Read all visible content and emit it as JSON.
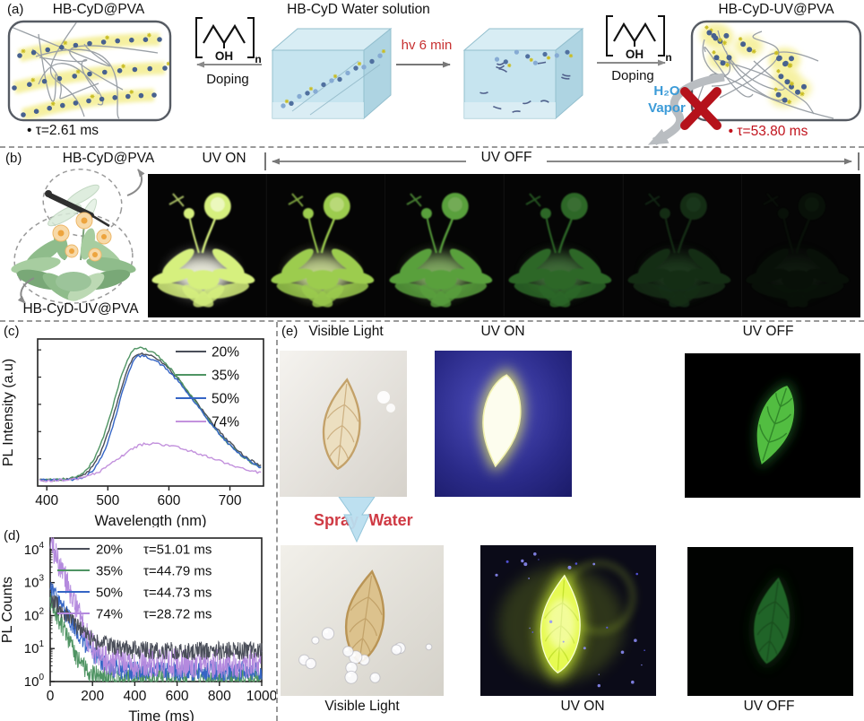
{
  "panel_labels": {
    "a": "(a)",
    "b": "(b)",
    "c": "(c)",
    "d": "(d)",
    "e": "(e)"
  },
  "panel_a": {
    "left_title": "HB-CyD@PVA",
    "bullet": "•",
    "left_tau": "τ=2.61  ms",
    "doping_left": "Doping",
    "solution_title": "HB-CyD Water solution",
    "hv_label": "hv 6 min",
    "doping_right": "Doping",
    "right_title": "HB-CyD-UV@PVA",
    "vapor_line1": "H₂O",
    "vapor_line2": "Vapor",
    "right_tau": "τ=53.80 ms",
    "pva_oh": "OH",
    "pva_n": "n"
  },
  "panel_b": {
    "top_label": "HB-CyD@PVA",
    "bottom_label": "HB-CyD-UV@PVA",
    "uv_on": "UV ON",
    "uv_off": "UV OFF",
    "frames": [
      {
        "leaf": "#d6f07e",
        "core": "#fffff0",
        "glow": 1.0
      },
      {
        "leaf": "#a9dd55",
        "core": "#e4f7a8",
        "glow": 0.92
      },
      {
        "leaf": "#6cc24a",
        "core": "#a8dd80",
        "glow": 0.82
      },
      {
        "leaf": "#3f9638",
        "core": "#63aa58",
        "glow": 0.68
      },
      {
        "leaf": "#234f24",
        "core": "#356b34",
        "glow": 0.55
      },
      {
        "leaf": "#11240f",
        "core": "#1b3a1a",
        "glow": 0.4
      }
    ]
  },
  "panel_e": {
    "top_titles": [
      "Visible Light",
      "UV ON",
      "UV OFF"
    ],
    "bottom_titles": [
      "Visible Light",
      "UV ON",
      "UV OFF"
    ],
    "spray_word1": "Spray",
    "spray_word2": "Water"
  },
  "colors": {
    "accent_red": "#c1121c",
    "hv_red": "#c73030",
    "spray_red": "#cf3a44",
    "vapor_blue": "#3b9bd8",
    "water_box": "#c6e4ef",
    "glow_yellow": "#f5f0a0",
    "particle_blue": "#47618f"
  },
  "chart_data": [
    {
      "panel": "c",
      "type": "line",
      "xlabel": "Wavelength (nm)",
      "ylabel": "PL Intensity (a.u)",
      "xlim": [
        385,
        755
      ],
      "xticks": [
        400,
        500,
        600,
        700
      ],
      "ylim": [
        0,
        1.08
      ],
      "grid": false,
      "legend_position": "top-right",
      "series": [
        {
          "name": "20%",
          "color": "#4a4e59",
          "peak_nm": 551,
          "rel_height": 0.93,
          "sigma_left": 36,
          "sigma_right": 95,
          "baseline": 0.045
        },
        {
          "name": "35%",
          "color": "#4f9463",
          "peak_nm": 548,
          "rel_height": 0.97,
          "sigma_left": 37,
          "sigma_right": 93,
          "baseline": 0.045
        },
        {
          "name": "50%",
          "color": "#3565c5",
          "peak_nm": 552,
          "rel_height": 0.91,
          "sigma_left": 34,
          "sigma_right": 93,
          "baseline": 0.045
        },
        {
          "name": "74%",
          "color": "#c392dd",
          "peak_nm": 566,
          "rel_height": 0.27,
          "sigma_left": 48,
          "sigma_right": 105,
          "baseline": 0.04
        }
      ]
    },
    {
      "panel": "d",
      "type": "line",
      "xlabel": "Time (ms)",
      "ylabel": "PL Counts",
      "xlim": [
        0,
        1000
      ],
      "xticks": [
        0,
        200,
        400,
        600,
        800,
        1000
      ],
      "yscale": "log",
      "ytick_exponents": [
        0,
        1,
        2,
        3,
        4
      ],
      "ylim_exponents": [
        0,
        4.35
      ],
      "grid": false,
      "legend_position": "top",
      "series": [
        {
          "name": "20%",
          "tau_label": "τ=51.01 ms",
          "tau_ms": 51.01,
          "color": "#4a4e59",
          "amp": 320,
          "decay_vis": 60,
          "floor": 8.5,
          "spread": 0.28
        },
        {
          "name": "35%",
          "tau_label": "τ=44.79 ms",
          "tau_ms": 44.79,
          "color": "#4f9463",
          "amp": 290,
          "decay_vis": 30,
          "floor": 1.35,
          "spread": 0.3
        },
        {
          "name": "50%",
          "tau_label": "τ=44.73 ms",
          "tau_ms": 44.73,
          "color": "#3565c5",
          "amp": 650,
          "decay_vis": 42,
          "floor": 2.1,
          "spread": 0.3
        },
        {
          "name": "74%",
          "tau_label": "τ=28.72 ms",
          "tau_ms": 28.72,
          "color": "#b48ade",
          "amp": 18000,
          "decay_vis": 26,
          "floor": 3.6,
          "spread": 0.45
        }
      ]
    }
  ]
}
